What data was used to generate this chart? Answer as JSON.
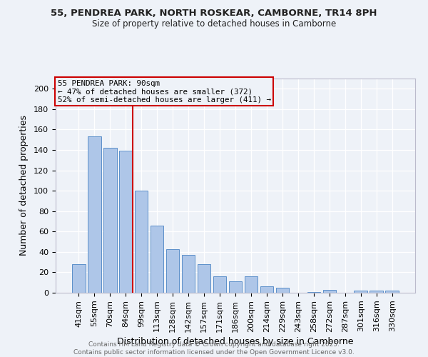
{
  "title_line1": "55, PENDREA PARK, NORTH ROSKEAR, CAMBORNE, TR14 8PH",
  "title_line2": "Size of property relative to detached houses in Camborne",
  "categories": [
    "41sqm",
    "55sqm",
    "70sqm",
    "84sqm",
    "99sqm",
    "113sqm",
    "128sqm",
    "142sqm",
    "157sqm",
    "171sqm",
    "186sqm",
    "200sqm",
    "214sqm",
    "229sqm",
    "243sqm",
    "258sqm",
    "272sqm",
    "287sqm",
    "301sqm",
    "316sqm",
    "330sqm"
  ],
  "values": [
    28,
    153,
    142,
    139,
    100,
    66,
    43,
    37,
    28,
    16,
    11,
    16,
    6,
    5,
    0,
    1,
    3,
    0,
    2,
    2,
    2
  ],
  "bar_color": "#aec6e8",
  "bar_edge_color": "#5b8fc9",
  "xlabel": "Distribution of detached houses by size in Camborne",
  "ylabel": "Number of detached properties",
  "ylim": [
    0,
    210
  ],
  "yticks": [
    0,
    20,
    40,
    60,
    80,
    100,
    120,
    140,
    160,
    180,
    200
  ],
  "property_bar_index": 3,
  "annotation_title": "55 PENDREA PARK: 90sqm",
  "annotation_line1": "← 47% of detached houses are smaller (372)",
  "annotation_line2": "52% of semi-detached houses are larger (411) →",
  "vline_color": "#cc0000",
  "box_edge_color": "#cc0000",
  "background_color": "#eef2f8",
  "footer_line1": "Contains HM Land Registry data © Crown copyright and database right 2025.",
  "footer_line2": "Contains public sector information licensed under the Open Government Licence v3.0."
}
